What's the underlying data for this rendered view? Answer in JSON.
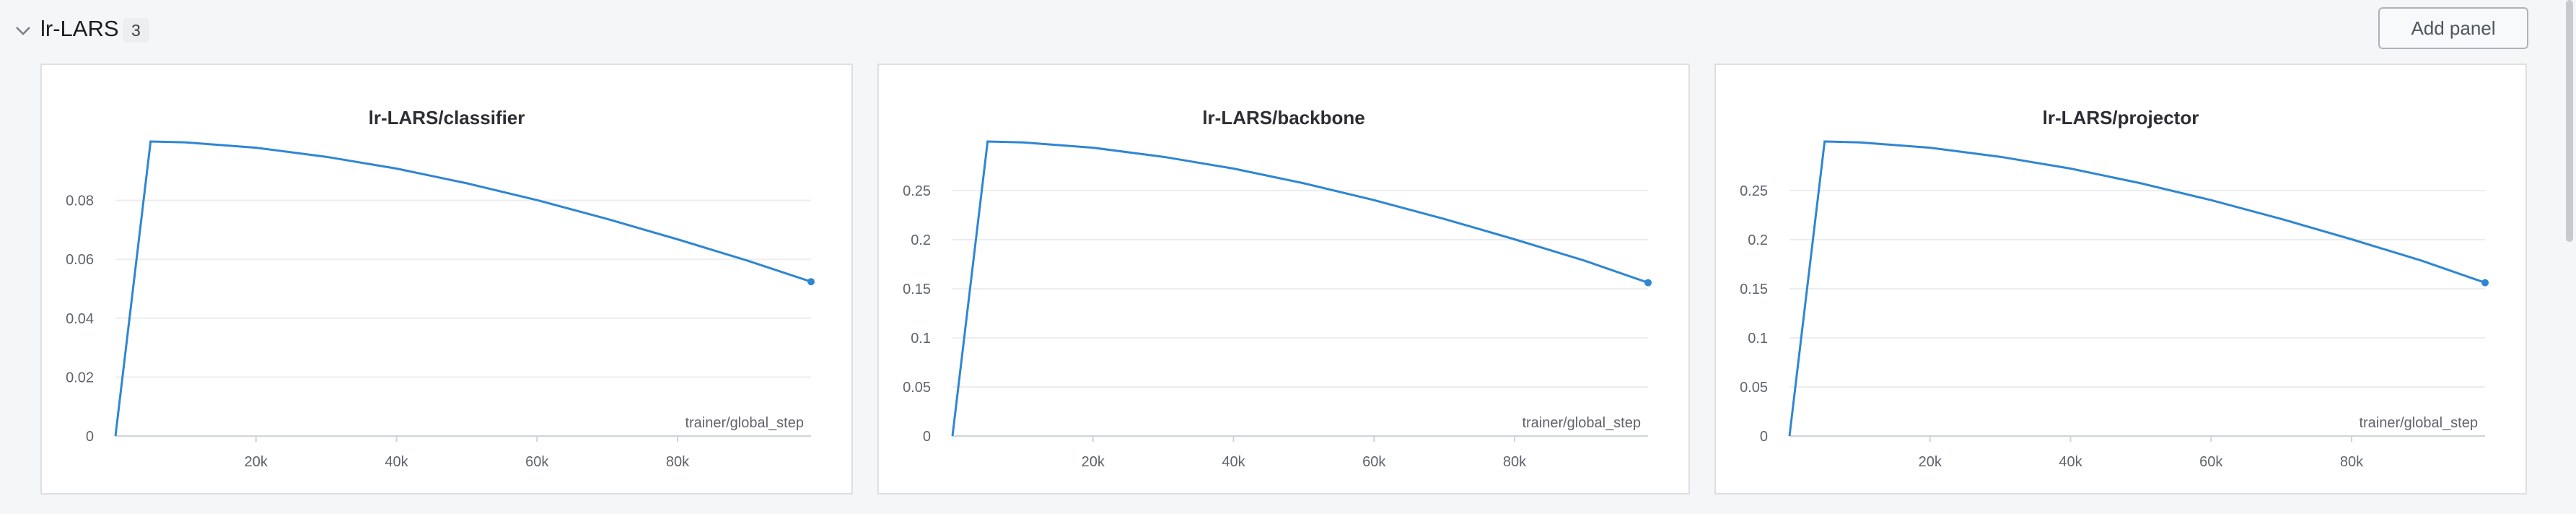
{
  "section": {
    "title": "lr-LARS",
    "count": "3",
    "add_panel_label": "Add panel"
  },
  "colors": {
    "series": "#2f86d3"
  },
  "chart_data": [
    {
      "type": "line",
      "title": "lr-LARS/classifier",
      "xlabel": "trainer/global_step",
      "ylabel": "",
      "xlim": [
        0,
        99000
      ],
      "ylim": [
        0,
        0.1
      ],
      "xticks": [
        20000,
        40000,
        60000,
        80000
      ],
      "xtick_labels": [
        "20k",
        "40k",
        "60k",
        "80k"
      ],
      "yticks": [
        0,
        0.02,
        0.04,
        0.06,
        0.08
      ],
      "ytick_labels": [
        "0",
        "0.02",
        "0.04",
        "0.06",
        "0.08"
      ],
      "series": [
        {
          "name": "lr-LARS/classifier",
          "x": [
            0,
            5000,
            10000,
            20000,
            30000,
            40000,
            50000,
            60000,
            70000,
            80000,
            90000,
            99000
          ],
          "y": [
            0,
            0.1,
            0.0997,
            0.0979,
            0.0948,
            0.0908,
            0.0858,
            0.0801,
            0.0737,
            0.0668,
            0.0595,
            0.0524
          ]
        }
      ]
    },
    {
      "type": "line",
      "title": "lr-LARS/backbone",
      "xlabel": "trainer/global_step",
      "ylabel": "",
      "xlim": [
        0,
        99000
      ],
      "ylim": [
        0,
        0.3
      ],
      "xticks": [
        20000,
        40000,
        60000,
        80000
      ],
      "xtick_labels": [
        "20k",
        "40k",
        "60k",
        "80k"
      ],
      "yticks": [
        0,
        0.05,
        0.1,
        0.15,
        0.2,
        0.25
      ],
      "ytick_labels": [
        "0",
        "0.05",
        "0.1",
        "0.15",
        "0.2",
        "0.25"
      ],
      "series": [
        {
          "name": "lr-LARS/backbone",
          "x": [
            0,
            5000,
            10000,
            20000,
            30000,
            40000,
            50000,
            60000,
            70000,
            80000,
            90000,
            99000
          ],
          "y": [
            0,
            0.3,
            0.2991,
            0.2937,
            0.2844,
            0.2724,
            0.2574,
            0.2403,
            0.2211,
            0.2004,
            0.1785,
            0.1562
          ]
        }
      ]
    },
    {
      "type": "line",
      "title": "lr-LARS/projector",
      "xlabel": "trainer/global_step",
      "ylabel": "",
      "xlim": [
        0,
        99000
      ],
      "ylim": [
        0,
        0.3
      ],
      "xticks": [
        20000,
        40000,
        60000,
        80000
      ],
      "xtick_labels": [
        "20k",
        "40k",
        "60k",
        "80k"
      ],
      "yticks": [
        0,
        0.05,
        0.1,
        0.15,
        0.2,
        0.25
      ],
      "ytick_labels": [
        "0",
        "0.05",
        "0.1",
        "0.15",
        "0.2",
        "0.25"
      ],
      "series": [
        {
          "name": "lr-LARS/projector",
          "x": [
            0,
            5000,
            10000,
            20000,
            30000,
            40000,
            50000,
            60000,
            70000,
            80000,
            90000,
            99000
          ],
          "y": [
            0,
            0.3,
            0.2991,
            0.2937,
            0.2844,
            0.2724,
            0.2574,
            0.2403,
            0.2211,
            0.2004,
            0.1785,
            0.1562
          ]
        }
      ]
    }
  ]
}
